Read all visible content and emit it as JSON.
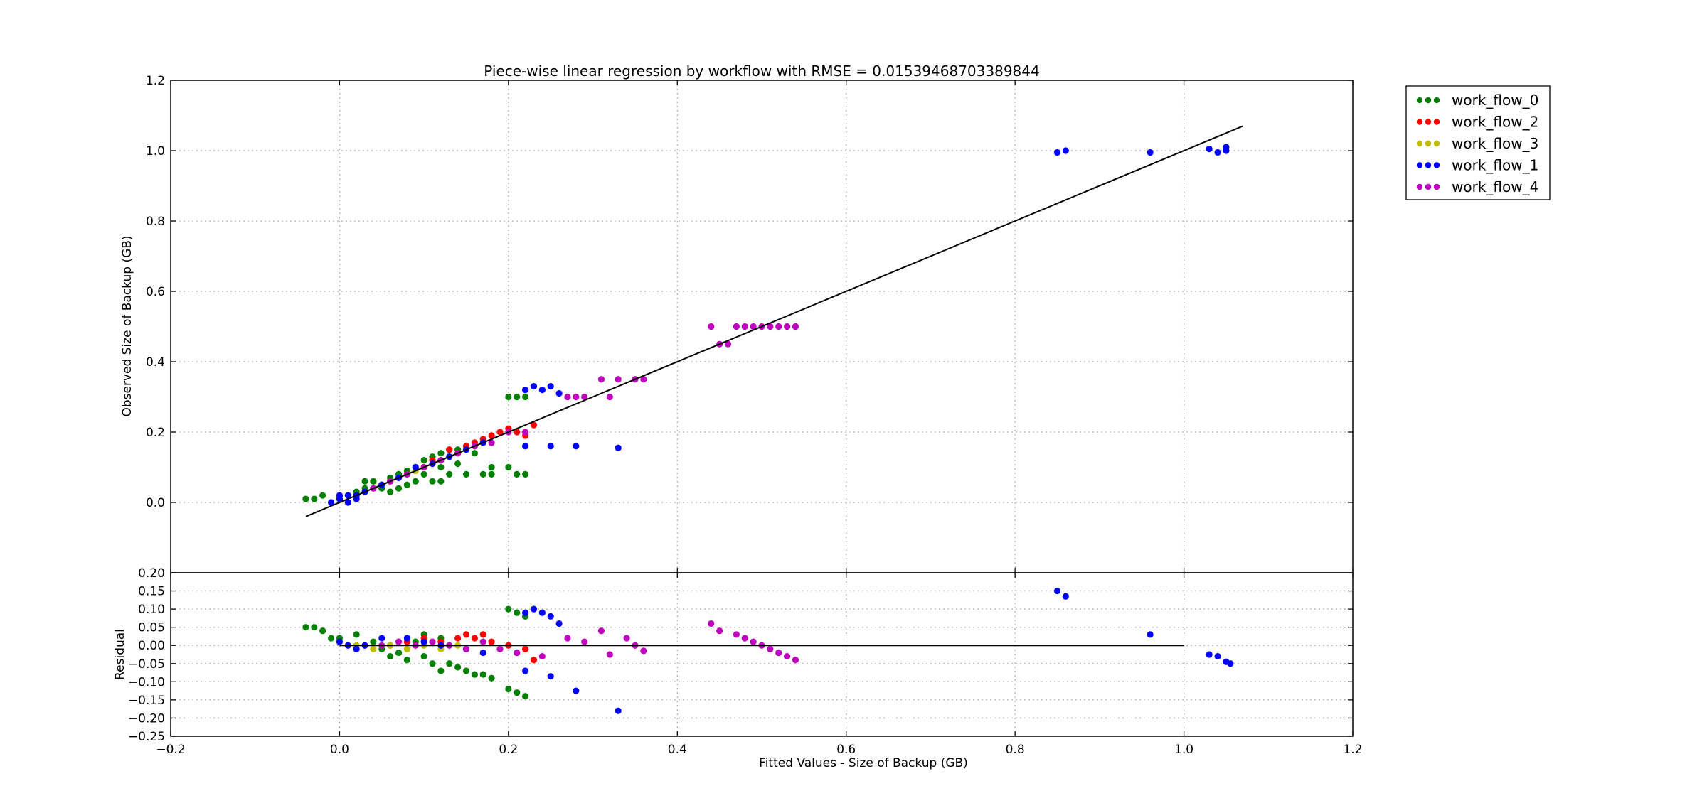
{
  "chart_data": [
    {
      "type": "scatter",
      "title": "Piece-wise linear regression by workflow with RMSE = 0.01539468703389844",
      "xlabel": "",
      "ylabel": "Observed Size of Backup (GB)",
      "xlim": [
        -0.2,
        1.2
      ],
      "ylim": [
        -0.2,
        1.2
      ],
      "xticks": [
        "−0.2",
        "0.0",
        "0.2",
        "0.4",
        "0.6",
        "0.8",
        "1.0",
        "1.2"
      ],
      "yticks": [
        "0.0",
        "0.2",
        "0.4",
        "0.6",
        "0.8",
        "1.0",
        "1.2"
      ],
      "grid": true,
      "legend_position": "top-right",
      "fit_line": {
        "x": [
          -0.04,
          1.07
        ],
        "y": [
          -0.04,
          1.07
        ],
        "color": "#000000"
      },
      "series": [
        {
          "name": "work_flow_0",
          "color": "#008000",
          "x": [
            -0.04,
            -0.03,
            -0.02,
            0.0,
            0.01,
            0.02,
            0.03,
            0.04,
            0.05,
            0.06,
            0.07,
            0.08,
            0.09,
            0.1,
            0.11,
            0.12,
            0.13,
            0.14,
            0.15,
            0.16,
            0.17,
            0.18,
            0.2,
            0.21,
            0.22,
            0.2,
            0.21,
            0.22,
            0.1,
            0.11,
            0.12,
            0.13,
            0.15,
            0.03,
            0.05,
            0.07,
            0.09,
            0.11,
            0.06,
            0.08,
            0.12,
            0.14,
            0.18
          ],
          "y": [
            0.01,
            0.01,
            0.02,
            0.01,
            0.02,
            0.03,
            0.04,
            0.06,
            0.05,
            0.07,
            0.08,
            0.09,
            0.1,
            0.12,
            0.13,
            0.14,
            0.15,
            0.15,
            0.16,
            0.14,
            0.08,
            0.1,
            0.3,
            0.3,
            0.3,
            0.1,
            0.08,
            0.08,
            0.08,
            0.06,
            0.06,
            0.08,
            0.08,
            0.06,
            0.04,
            0.04,
            0.06,
            0.12,
            0.03,
            0.05,
            0.1,
            0.11,
            0.08
          ]
        },
        {
          "name": "work_flow_2",
          "color": "#ff0000",
          "x": [
            0.06,
            0.08,
            0.1,
            0.12,
            0.14,
            0.15,
            0.16,
            0.17,
            0.18,
            0.19,
            0.2,
            0.21,
            0.22,
            0.23,
            0.13,
            0.11
          ],
          "y": [
            0.06,
            0.08,
            0.1,
            0.12,
            0.14,
            0.16,
            0.17,
            0.18,
            0.19,
            0.2,
            0.21,
            0.2,
            0.19,
            0.22,
            0.15,
            0.12
          ]
        },
        {
          "name": "work_flow_3",
          "color": "#bfbf00",
          "x": [
            0.02,
            0.03,
            0.04,
            0.05,
            0.06,
            0.07,
            0.08,
            0.09,
            0.1,
            0.12,
            0.14,
            0.16
          ],
          "y": [
            0.02,
            0.03,
            0.04,
            0.05,
            0.06,
            0.07,
            0.08,
            0.09,
            0.1,
            0.12,
            0.14,
            0.16
          ]
        },
        {
          "name": "work_flow_1",
          "color": "#0000ff",
          "x": [
            -0.01,
            0.0,
            0.0,
            0.01,
            0.01,
            0.02,
            0.02,
            0.03,
            0.05,
            0.07,
            0.09,
            0.11,
            0.13,
            0.15,
            0.17,
            0.22,
            0.23,
            0.24,
            0.25,
            0.26,
            0.22,
            0.25,
            0.28,
            0.33,
            0.85,
            0.86,
            0.96,
            1.03,
            1.04,
            1.05,
            1.05
          ],
          "y": [
            0.0,
            0.01,
            0.02,
            0.0,
            0.02,
            0.01,
            0.02,
            0.03,
            0.05,
            0.07,
            0.1,
            0.11,
            0.13,
            0.15,
            0.17,
            0.32,
            0.33,
            0.32,
            0.33,
            0.31,
            0.16,
            0.16,
            0.16,
            0.155,
            0.995,
            1.0,
            0.995,
            1.005,
            0.995,
            1.0,
            1.01
          ]
        },
        {
          "name": "work_flow_4",
          "color": "#bf00bf",
          "x": [
            0.04,
            0.06,
            0.08,
            0.1,
            0.12,
            0.14,
            0.16,
            0.18,
            0.2,
            0.22,
            0.27,
            0.28,
            0.29,
            0.31,
            0.32,
            0.33,
            0.35,
            0.36,
            0.44,
            0.45,
            0.46,
            0.47,
            0.48,
            0.49,
            0.5,
            0.51,
            0.52,
            0.53,
            0.54
          ],
          "y": [
            0.04,
            0.06,
            0.08,
            0.1,
            0.12,
            0.14,
            0.16,
            0.17,
            0.2,
            0.2,
            0.3,
            0.3,
            0.3,
            0.35,
            0.3,
            0.35,
            0.35,
            0.35,
            0.5,
            0.45,
            0.45,
            0.5,
            0.5,
            0.5,
            0.5,
            0.5,
            0.5,
            0.5,
            0.5
          ]
        }
      ]
    },
    {
      "type": "scatter",
      "title": "",
      "xlabel": "Fitted Values - Size of Backup (GB)",
      "ylabel": "Residual",
      "xlim": [
        -0.2,
        1.2
      ],
      "ylim": [
        -0.25,
        0.2
      ],
      "xticks": [
        "−0.2",
        "0.0",
        "0.2",
        "0.4",
        "0.6",
        "0.8",
        "1.0",
        "1.2"
      ],
      "yticks": [
        "−0.25",
        "−0.20",
        "−0.15",
        "−0.10",
        "−0.05",
        "0.00",
        "0.05",
        "0.10",
        "0.15",
        "0.20"
      ],
      "grid": true,
      "zero_line": {
        "x": [
          0.0,
          1.0
        ],
        "y": [
          0.0,
          0.0
        ],
        "color": "#000000"
      },
      "series": [
        {
          "name": "work_flow_0",
          "color": "#008000",
          "x": [
            -0.04,
            -0.03,
            -0.02,
            -0.01,
            0.0,
            0.02,
            0.04,
            0.05,
            0.07,
            0.08,
            0.1,
            0.11,
            0.12,
            0.13,
            0.14,
            0.15,
            0.16,
            0.17,
            0.18,
            0.2,
            0.21,
            0.22,
            0.2,
            0.21,
            0.22,
            0.12,
            0.1,
            0.09,
            0.06
          ],
          "y": [
            0.05,
            0.05,
            0.04,
            0.02,
            0.02,
            0.03,
            0.01,
            -0.01,
            -0.02,
            -0.04,
            -0.03,
            -0.05,
            -0.07,
            -0.05,
            -0.06,
            -0.07,
            -0.08,
            -0.08,
            -0.09,
            0.1,
            0.09,
            0.08,
            -0.12,
            -0.13,
            -0.14,
            0.02,
            0.03,
            0.01,
            -0.03
          ]
        },
        {
          "name": "work_flow_2",
          "color": "#ff0000",
          "x": [
            0.06,
            0.08,
            0.1,
            0.12,
            0.14,
            0.15,
            0.16,
            0.17,
            0.18,
            0.2,
            0.22,
            0.23
          ],
          "y": [
            0.0,
            0.01,
            0.02,
            0.01,
            0.02,
            0.03,
            0.02,
            0.03,
            0.01,
            0.0,
            -0.01,
            -0.04
          ]
        },
        {
          "name": "work_flow_3",
          "color": "#bfbf00",
          "x": [
            0.02,
            0.04,
            0.06,
            0.08,
            0.1,
            0.12,
            0.14
          ],
          "y": [
            0.0,
            -0.01,
            0.0,
            -0.01,
            0.0,
            -0.01,
            0.0
          ]
        },
        {
          "name": "work_flow_1",
          "color": "#0000ff",
          "x": [
            0.0,
            0.01,
            0.02,
            0.03,
            0.05,
            0.08,
            0.1,
            0.12,
            0.15,
            0.17,
            0.22,
            0.23,
            0.24,
            0.25,
            0.26,
            0.22,
            0.25,
            0.28,
            0.33,
            0.85,
            0.86,
            0.96,
            1.03,
            1.04,
            1.05,
            1.055
          ],
          "y": [
            0.01,
            0.0,
            -0.01,
            0.0,
            0.02,
            0.02,
            0.01,
            0.0,
            -0.01,
            -0.02,
            0.09,
            0.1,
            0.09,
            0.08,
            0.06,
            -0.07,
            -0.085,
            -0.125,
            -0.18,
            0.15,
            0.135,
            0.03,
            -0.025,
            -0.03,
            -0.045,
            -0.05
          ]
        },
        {
          "name": "work_flow_4",
          "color": "#bf00bf",
          "x": [
            0.05,
            0.07,
            0.09,
            0.11,
            0.13,
            0.15,
            0.17,
            0.19,
            0.21,
            0.24,
            0.27,
            0.29,
            0.31,
            0.32,
            0.34,
            0.35,
            0.36,
            0.44,
            0.45,
            0.47,
            0.48,
            0.49,
            0.5,
            0.51,
            0.52,
            0.53,
            0.54
          ],
          "y": [
            0.0,
            0.01,
            0.0,
            0.01,
            0.0,
            -0.01,
            0.01,
            -0.01,
            -0.02,
            -0.03,
            0.02,
            0.01,
            0.04,
            -0.025,
            0.02,
            0.0,
            -0.015,
            0.06,
            0.04,
            0.03,
            0.02,
            0.01,
            0.0,
            -0.01,
            -0.02,
            -0.03,
            -0.04
          ]
        }
      ]
    }
  ]
}
